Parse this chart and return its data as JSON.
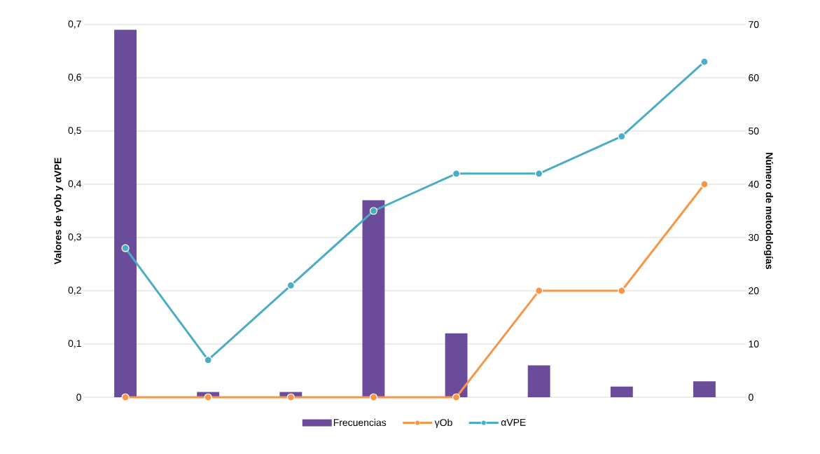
{
  "chart_data": {
    "type": "bar",
    "ylabel": "Valores de γOb y αVPE",
    "y2label": "Número de metodologías",
    "categories": [
      null,
      null,
      null,
      null,
      null,
      null,
      null,
      null
    ],
    "series": [
      {
        "name": "Frecuencias",
        "type": "bar",
        "axis": "y2",
        "color": "#6b4c9a",
        "values": [
          69,
          1,
          1,
          37,
          12,
          6,
          2,
          3
        ]
      },
      {
        "name": "γOb",
        "type": "line",
        "color": "#f79646",
        "values": [
          0,
          0,
          0,
          0,
          0,
          0.2,
          0.2,
          0.4
        ]
      },
      {
        "name": "αVPE",
        "type": "line",
        "color": "#4bacc6",
        "values": [
          0.28,
          0.07,
          0.21,
          0.35,
          0.42,
          0.42,
          0.49,
          0.63
        ]
      }
    ],
    "ylim": [
      0,
      0.7
    ],
    "yticks": [
      0,
      {
        "value": 0.1,
        "label": "0,1"
      },
      {
        "value": 0.2,
        "label": "0,2"
      },
      {
        "value": 0.3,
        "label": "0,3"
      },
      {
        "value": 0.4,
        "label": "0,4"
      },
      {
        "value": 0.5,
        "label": "0,5"
      },
      {
        "value": 0.6,
        "label": "0,6"
      },
      {
        "value": 0.7,
        "label": "0,7"
      }
    ],
    "y2lim": [
      0,
      70
    ],
    "y2ticks": [
      0,
      10,
      20,
      30,
      40,
      50,
      60,
      70
    ],
    "grid": "y",
    "legend": "bottom",
    "marker": "circle",
    "line_style": "solid"
  }
}
